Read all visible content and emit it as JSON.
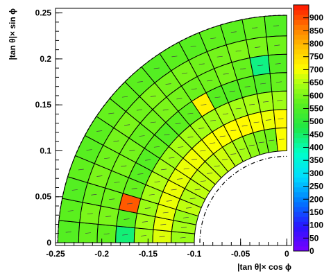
{
  "chart_data": {
    "type": "heatmap",
    "geometry": "polar-quadrant",
    "title": "",
    "xlabel": "|tan θ|× cos ϕ",
    "ylabel": "|tan θ|× sin ϕ",
    "xlim": [
      -0.25,
      0.005
    ],
    "ylim": [
      -0.003,
      0.255
    ],
    "x_ticks": [
      "-0.25",
      "-0.2",
      "-0.15",
      "-0.1",
      "-0.05",
      "0"
    ],
    "x_tick_values": [
      -0.25,
      -0.2,
      -0.15,
      -0.1,
      -0.05,
      0
    ],
    "y_ticks": [
      "0",
      "0.05",
      "0.1",
      "0.15",
      "0.2",
      "0.25"
    ],
    "y_tick_values": [
      0,
      0.05,
      0.1,
      0.15,
      0.2,
      0.25
    ],
    "colorbar": {
      "min": 0,
      "max": 950,
      "labels": [
        "0",
        "50",
        "100",
        "150",
        "200",
        "250",
        "300",
        "350",
        "400",
        "450",
        "500",
        "550",
        "600",
        "650",
        "700",
        "750",
        "800",
        "850",
        "900"
      ],
      "values": [
        0,
        50,
        100,
        150,
        200,
        250,
        300,
        350,
        400,
        450,
        500,
        550,
        600,
        650,
        700,
        750,
        800,
        850,
        900
      ]
    },
    "rings": [
      {
        "r_in": 0.225,
        "r_out": 0.2475,
        "values": [
          560,
          570,
          560,
          575,
          565,
          570,
          580,
          575,
          570,
          560,
          570,
          565,
          575,
          570,
          580,
          560
        ]
      },
      {
        "r_in": 0.205,
        "r_out": 0.225,
        "values": [
          580,
          600,
          585,
          600,
          590,
          595,
          600,
          590,
          605,
          595,
          600,
          590,
          595,
          605,
          600,
          590
        ]
      },
      {
        "r_in": 0.185,
        "r_out": 0.205,
        "values": [
          575,
          600,
          590,
          585,
          600,
          595,
          580,
          590,
          600,
          595,
          585,
          590,
          600,
          580,
          430,
          560
        ]
      },
      {
        "r_in": 0.165,
        "r_out": 0.185,
        "values": [
          440,
          565,
          890,
          580,
          565,
          560,
          575,
          560,
          570,
          575,
          720,
          565,
          560,
          570,
          555,
          580
        ]
      },
      {
        "r_in": 0.145,
        "r_out": 0.165,
        "values": [
          635,
          640,
          630,
          640,
          650,
          640,
          635,
          645,
          640,
          640,
          635,
          650,
          640,
          645,
          640,
          635
        ]
      },
      {
        "r_in": 0.125,
        "r_out": 0.145,
        "values": [
          680,
          690,
          685,
          690,
          690,
          685,
          690,
          695,
          690,
          700,
          700,
          705,
          710,
          700,
          690,
          710
        ]
      },
      {
        "r_in": 0.1,
        "r_out": 0.125,
        "values": [
          630,
          640,
          630,
          660,
          650,
          660,
          665,
          670,
          660,
          670,
          655,
          640,
          620,
          600,
          590,
          700
        ]
      }
    ]
  }
}
